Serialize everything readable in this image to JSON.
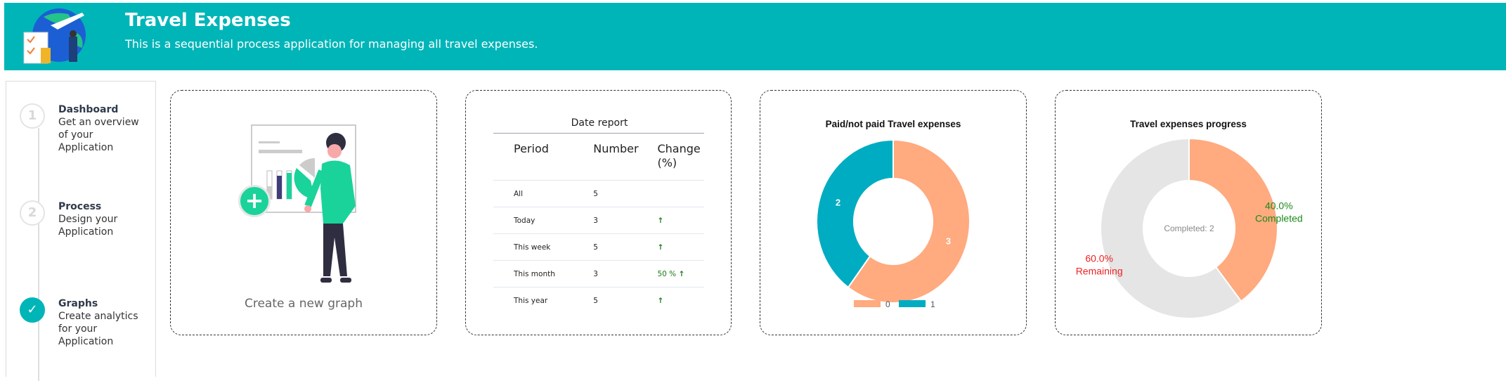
{
  "header": {
    "title": "Travel Expenses",
    "subtitle": "This is a sequential process application for managing all travel expenses.",
    "color": "#00B5B8"
  },
  "steps": [
    {
      "number": "1",
      "title": "Dashboard",
      "desc": [
        "Get an overview",
        "of your",
        "Application"
      ],
      "status": "pending"
    },
    {
      "number": "2",
      "title": "Process",
      "desc": [
        "Design your",
        "Application"
      ],
      "status": "pending"
    },
    {
      "number": "✓",
      "title": "Graphs",
      "desc": [
        "Create analytics",
        "for your",
        "Application"
      ],
      "status": "completed",
      "icon": "check-icon"
    }
  ],
  "new_graph": {
    "label": "Create a new graph",
    "icon": "plus-icon"
  },
  "date_report": {
    "title": "Date report",
    "headers": [
      "Period",
      "Number",
      "Change (%)"
    ],
    "rows": [
      {
        "period": "All",
        "number": "5",
        "change": ""
      },
      {
        "period": "Today",
        "number": "3",
        "change": "",
        "arrow": "↑"
      },
      {
        "period": "This week",
        "number": "5",
        "change": "",
        "arrow": "↑"
      },
      {
        "period": "This month",
        "number": "3",
        "change": "50 %",
        "arrow": "↑"
      },
      {
        "period": "This year",
        "number": "5",
        "change": "",
        "arrow": "↑"
      }
    ]
  },
  "chart_data": [
    {
      "type": "pie",
      "variant": "donut",
      "title": "Paid/not paid Travel expenses",
      "categories": [
        "0",
        "1"
      ],
      "values": [
        3,
        2
      ],
      "colors": [
        "#FFAA7F",
        "#00ACC1"
      ],
      "data_labels": [
        "3",
        "2"
      ],
      "legend": "bottom"
    },
    {
      "type": "pie",
      "variant": "donut",
      "title": "Travel expenses progress",
      "categories": [
        "Completed",
        "Remaining"
      ],
      "values": [
        40.0,
        60.0
      ],
      "colors": [
        "#FFAA7F",
        "#E5E5E5"
      ],
      "label_colors": [
        "#1a8a1a",
        "#ee2222"
      ],
      "data_labels": [
        "40.0%",
        "60.0%"
      ],
      "center_label": "Completed: 2"
    }
  ]
}
